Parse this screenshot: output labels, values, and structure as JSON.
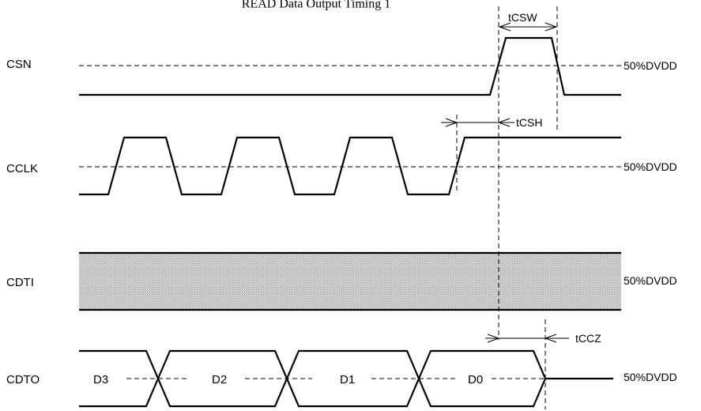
{
  "title": "READ Data Output Timing 1",
  "signals": {
    "csn": "CSN",
    "cclk": "CCLK",
    "cdti": "CDTI",
    "cdto": "CDTO"
  },
  "reference": {
    "csn": "50%DVDD",
    "cclk": "50%DVDD",
    "cdti": "50%DVDD",
    "cdto": "50%DVDD"
  },
  "timings": {
    "tcsw": "tCSW",
    "tcsh": "tCSH",
    "tccz": "tCCZ"
  },
  "data_bits": [
    "D3",
    "D2",
    "D1",
    "D0"
  ],
  "colors": {
    "line": "#000000",
    "hatch": "#bdbdbd"
  }
}
